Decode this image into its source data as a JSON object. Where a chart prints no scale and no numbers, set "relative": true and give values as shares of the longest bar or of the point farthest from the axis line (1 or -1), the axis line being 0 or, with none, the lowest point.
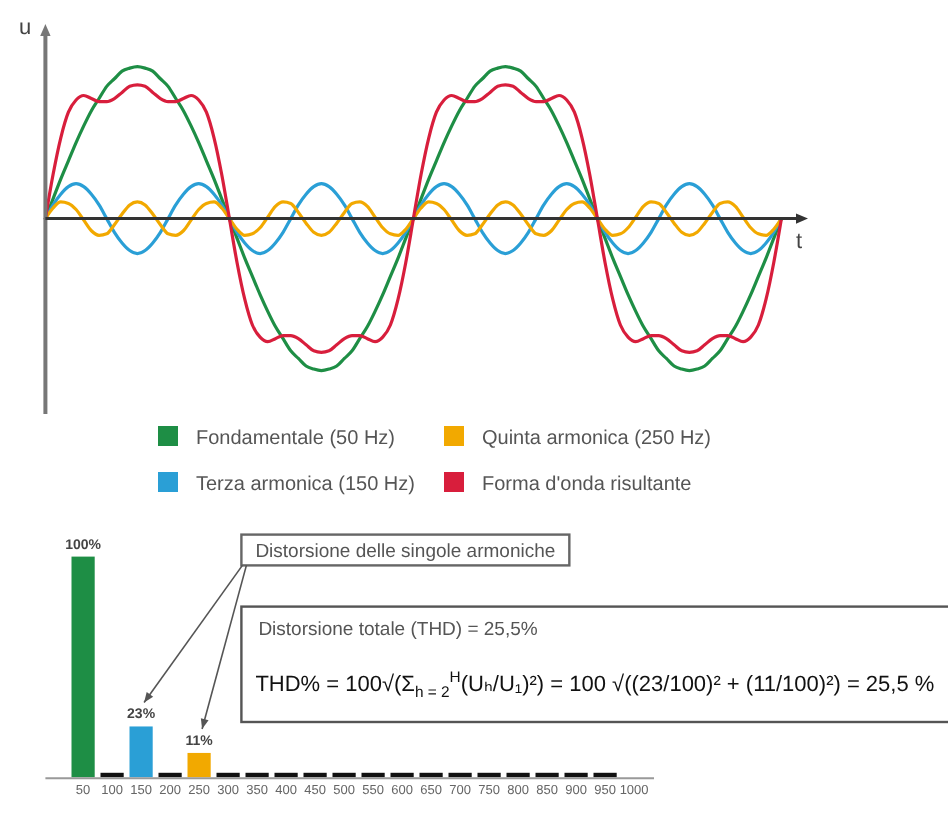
{
  "chart_data": [
    {
      "type": "line",
      "xlabel": "t",
      "ylabel": "u",
      "relative": true,
      "legend": "bottom",
      "categories": [
        null,
        null,
        null,
        null,
        null,
        null,
        null,
        null,
        null,
        null,
        null,
        null,
        null,
        null,
        null,
        null,
        null,
        null,
        null,
        null,
        null,
        null,
        null,
        null,
        null,
        null,
        null,
        null,
        null,
        null,
        null,
        null,
        null,
        null,
        null,
        null,
        null,
        null,
        null,
        null,
        null,
        null,
        null,
        null,
        null,
        null,
        null,
        null,
        null,
        null,
        null,
        null,
        null,
        null,
        null,
        null,
        null,
        null,
        null,
        null,
        null,
        null,
        null,
        null,
        null,
        null,
        null,
        null,
        null,
        null,
        null,
        null,
        null,
        null,
        null,
        null,
        null,
        null,
        null,
        null,
        null,
        null,
        null,
        null,
        null,
        null,
        null,
        null,
        null,
        null,
        null,
        null,
        null,
        null,
        null,
        null,
        null
      ],
      "series": [
        {
          "name": "Fondamentale (50 Hz)",
          "color": "#1e8e45",
          "values": [
            0,
            0.13,
            0.26,
            0.38,
            0.5,
            0.61,
            0.71,
            0.79,
            0.87,
            0.92,
            0.97,
            0.99,
            1,
            0.99,
            0.97,
            0.92,
            0.87,
            0.79,
            0.71,
            0.61,
            0.5,
            0.38,
            0.26,
            0.13,
            0,
            -0.13,
            -0.26,
            -0.38,
            -0.5,
            -0.61,
            -0.71,
            -0.79,
            -0.87,
            -0.92,
            -0.97,
            -0.99,
            -1,
            -0.99,
            -0.97,
            -0.92,
            -0.87,
            -0.79,
            -0.71,
            -0.61,
            -0.5,
            -0.38,
            -0.26,
            -0.13,
            0,
            0.13,
            0.26,
            0.38,
            0.5,
            0.61,
            0.71,
            0.79,
            0.87,
            0.92,
            0.97,
            0.99,
            1,
            0.99,
            0.97,
            0.92,
            0.87,
            0.79,
            0.71,
            0.61,
            0.5,
            0.38,
            0.26,
            0.13,
            0,
            -0.13,
            -0.26,
            -0.38,
            -0.5,
            -0.61,
            -0.71,
            -0.79,
            -0.87,
            -0.92,
            -0.97,
            -0.99,
            -1,
            -0.99,
            -0.97,
            -0.92,
            -0.87,
            -0.79,
            -0.71,
            -0.61,
            -0.5,
            -0.38,
            -0.26,
            -0.13,
            0
          ]
        },
        {
          "name": "Terza armonica (150 Hz)",
          "color": "#2a9fd6",
          "values": [
            0,
            0.09,
            0.16,
            0.21,
            0.23,
            0.21,
            0.16,
            0.09,
            0,
            -0.09,
            -0.16,
            -0.21,
            -0.23,
            -0.21,
            -0.16,
            -0.09,
            0,
            0.09,
            0.16,
            0.21,
            0.23,
            0.21,
            0.16,
            0.09,
            0,
            -0.09,
            -0.16,
            -0.21,
            -0.23,
            -0.21,
            -0.16,
            -0.09,
            0,
            0.09,
            0.16,
            0.21,
            0.23,
            0.21,
            0.16,
            0.09,
            0,
            -0.09,
            -0.16,
            -0.21,
            -0.23,
            -0.21,
            -0.16,
            -0.09,
            0,
            0.09,
            0.16,
            0.21,
            0.23,
            0.21,
            0.16,
            0.09,
            0,
            -0.09,
            -0.16,
            -0.21,
            -0.23,
            -0.21,
            -0.16,
            -0.09,
            0,
            0.09,
            0.16,
            0.21,
            0.23,
            0.21,
            0.16,
            0.09,
            0,
            -0.09,
            -0.16,
            -0.21,
            -0.23,
            -0.21,
            -0.16,
            -0.09,
            0,
            0.09,
            0.16,
            0.21,
            0.23,
            0.21,
            0.16,
            0.09,
            0,
            -0.09,
            -0.16,
            -0.21,
            -0.23,
            -0.21,
            -0.16,
            -0.09,
            0
          ]
        },
        {
          "name": "Quinta armonica (250 Hz)",
          "color": "#f2a900",
          "values": [
            0,
            0.07,
            0.11,
            0.1,
            0.06,
            -0.01,
            -0.08,
            -0.11,
            -0.1,
            -0.04,
            0.03,
            0.09,
            0.11,
            0.09,
            0.03,
            -0.04,
            -0.1,
            -0.11,
            -0.08,
            -0.01,
            0.06,
            0.1,
            0.11,
            0.07,
            0,
            -0.07,
            -0.11,
            -0.1,
            -0.06,
            0.01,
            0.08,
            0.11,
            0.1,
            0.04,
            -0.03,
            -0.09,
            -0.11,
            -0.09,
            -0.03,
            0.04,
            0.1,
            0.11,
            0.08,
            0.01,
            -0.06,
            -0.1,
            -0.11,
            -0.07,
            0,
            0.07,
            0.11,
            0.1,
            0.06,
            -0.01,
            -0.08,
            -0.11,
            -0.1,
            -0.04,
            0.03,
            0.09,
            0.11,
            0.09,
            0.03,
            -0.04,
            -0.1,
            -0.11,
            -0.08,
            -0.01,
            0.06,
            0.1,
            0.11,
            0.07,
            0,
            -0.07,
            -0.11,
            -0.1,
            -0.06,
            0.01,
            0.08,
            0.11,
            0.1,
            0.04,
            -0.03,
            -0.09,
            -0.11,
            -0.09,
            -0.03,
            0.04,
            0.1,
            0.11,
            0.08,
            0.01,
            -0.06,
            -0.1,
            -0.11,
            -0.07,
            0
          ]
        },
        {
          "name": "Forma d'onda risultante",
          "color": "#d81e3c",
          "values": [
            0,
            0.29,
            0.53,
            0.7,
            0.78,
            0.81,
            0.79,
            0.77,
            0.77,
            0.79,
            0.83,
            0.87,
            0.88,
            0.87,
            0.83,
            0.79,
            0.77,
            0.77,
            0.79,
            0.81,
            0.78,
            0.7,
            0.53,
            0.29,
            0,
            -0.29,
            -0.53,
            -0.7,
            -0.78,
            -0.81,
            -0.79,
            -0.77,
            -0.77,
            -0.79,
            -0.83,
            -0.87,
            -0.88,
            -0.87,
            -0.83,
            -0.79,
            -0.77,
            -0.77,
            -0.79,
            -0.81,
            -0.78,
            -0.7,
            -0.53,
            -0.29,
            0,
            0.29,
            0.53,
            0.7,
            0.78,
            0.81,
            0.79,
            0.77,
            0.77,
            0.79,
            0.83,
            0.87,
            0.88,
            0.87,
            0.83,
            0.79,
            0.77,
            0.77,
            0.79,
            0.81,
            0.78,
            0.7,
            0.53,
            0.29,
            0,
            -0.29,
            -0.53,
            -0.7,
            -0.78,
            -0.81,
            -0.79,
            -0.77,
            -0.77,
            -0.79,
            -0.83,
            -0.87,
            -0.88,
            -0.87,
            -0.83,
            -0.79,
            -0.77,
            -0.77,
            -0.79,
            -0.81,
            -0.78,
            -0.7,
            -0.53,
            -0.29,
            0
          ]
        }
      ]
    },
    {
      "type": "bar",
      "categories": [
        "50",
        "100",
        "150",
        "200",
        "250",
        "300",
        "350",
        "400",
        "450",
        "500",
        "550",
        "600",
        "650",
        "700",
        "750",
        "800",
        "850",
        "900",
        "950",
        "1000"
      ],
      "values": [
        100,
        2,
        23,
        2,
        11,
        2,
        2,
        2,
        2,
        2,
        2,
        2,
        2,
        2,
        2,
        2,
        2,
        2,
        2,
        null
      ],
      "colors": [
        "#1e8e45",
        "#111111",
        "#2a9fd6",
        "#111111",
        "#f2a900",
        "#111111",
        "#111111",
        "#111111",
        "#111111",
        "#111111",
        "#111111",
        "#111111",
        "#111111",
        "#111111",
        "#111111",
        "#111111",
        "#111111",
        "#111111",
        "#111111",
        null
      ],
      "value_labels": [
        "100%",
        null,
        "23%",
        null,
        "11%",
        null,
        null,
        null,
        null,
        null,
        null,
        null,
        null,
        null,
        null,
        null,
        null,
        null,
        null,
        null
      ],
      "annotations": [
        "Distorsione delle singole armoniche",
        "Distorsione totale (THD) = 25,5%",
        "THD% = 100√(Σ$_{h = 2}$$^{H}$(Uₕ/U₁)²) = 100 √((23/100)² + (11/100)²) = 25,5 %"
      ]
    }
  ]
}
